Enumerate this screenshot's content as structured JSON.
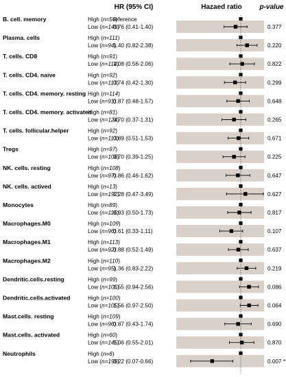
{
  "headers": {
    "hr_ci": "HR (95% CI)",
    "plot": "Hazaed ratio",
    "pvalue": "p-value"
  },
  "chart_data": {
    "type": "forest",
    "x_reference": 1,
    "reference_label": "reference",
    "colors": {
      "band": "#d9d0c9",
      "point": "#000000",
      "reference_line": "#555555"
    },
    "rows": [
      {
        "name": "B. cell. memory",
        "high_n": "n=56",
        "low_n": "n=149",
        "hr": 0.76,
        "lo": 0.41,
        "hi": 1.4,
        "hr_text": "0.76 (0.41-1.40)",
        "p": "0.377"
      },
      {
        "name": "Plasma. cells",
        "high_n": "n=111",
        "low_n": "n=94",
        "hr": 1.4,
        "lo": 0.82,
        "hi": 2.38,
        "hr_text": "1.40 (0.82-2.38)",
        "p": "0.220"
      },
      {
        "name": "T. cells. CD8",
        "high_n": "n=91",
        "low_n": "n=114",
        "hr": 1.08,
        "lo": 0.56,
        "hi": 2.06,
        "hr_text": "1.08 (0.56-2.06)",
        "p": "0.822"
      },
      {
        "name": "T. cells. CD4. naive",
        "high_n": "n=92",
        "low_n": "n=113",
        "hr": 0.74,
        "lo": 0.42,
        "hi": 1.3,
        "hr_text": "0.74 (0.42-1.30)",
        "p": "0.299"
      },
      {
        "name": "T. cells. CD4. memory. resting",
        "high_n": "n=114",
        "low_n": "n=91",
        "hr": 0.87,
        "lo": 0.48,
        "hi": 1.57,
        "hr_text": "0.87 (0.48-1.57)",
        "p": "0.648"
      },
      {
        "name": "T. cells. CD4. memory. activated",
        "high_n": "n=81",
        "low_n": "n=124",
        "hr": 0.7,
        "lo": 0.37,
        "hi": 1.31,
        "hr_text": "0.70 (0.37-1.31)",
        "p": "0.265"
      },
      {
        "name": "T. cells. follicular.helper",
        "high_n": "n=92",
        "low_n": "n=113",
        "hr": 0.89,
        "lo": 0.51,
        "hi": 1.53,
        "hr_text": "0.89 (0.51-1.53)",
        "p": "0.671"
      },
      {
        "name": "Tregs",
        "high_n": "n=97",
        "low_n": "n=108",
        "hr": 0.7,
        "lo": 0.39,
        "hi": 1.25,
        "hr_text": "0.70 (0.39-1.25)",
        "p": "0.225"
      },
      {
        "name": "NK. cells. resting",
        "high_n": "n=108",
        "low_n": "n=97",
        "hr": 0.86,
        "lo": 0.46,
        "hi": 1.62,
        "hr_text": "0.86 (0.46-1.62)",
        "p": "0.647"
      },
      {
        "name": "NK. cells. actived",
        "high_n": "n=13",
        "low_n": "n=192",
        "hr": 1.28,
        "lo": 0.47,
        "hi": 3.49,
        "hr_text": "1.28 (0.47-3.49)",
        "p": "0.627"
      },
      {
        "name": "Monocytes",
        "high_n": "n=89",
        "low_n": "n=116",
        "hr": 0.93,
        "lo": 0.5,
        "hi": 1.73,
        "hr_text": "0.93 (0.50-1.73)",
        "p": "0.817"
      },
      {
        "name": "Macrophages.M0",
        "high_n": "n=109",
        "low_n": "n=96",
        "hr": 0.61,
        "lo": 0.33,
        "hi": 1.11,
        "hr_text": "0.61 (0.33-1.11)",
        "p": "0.107"
      },
      {
        "name": "Macrophages.M1",
        "high_n": "n=113",
        "low_n": "n=92",
        "hr": 0.88,
        "lo": 0.52,
        "hi": 1.49,
        "hr_text": "0.88 (0.52-1.49)",
        "p": "0.637"
      },
      {
        "name": "Macrophages.M2",
        "high_n": "n=110",
        "low_n": "n=95",
        "hr": 1.36,
        "lo": 0.83,
        "hi": 2.22,
        "hr_text": "1.36 (0.83-2.22)",
        "p": "0.219"
      },
      {
        "name": "Dendritic.cells.resting",
        "high_n": "n=99",
        "low_n": "n=106",
        "hr": 1.55,
        "lo": 0.94,
        "hi": 2.56,
        "hr_text": "1.55 (0.94-2.56)",
        "p": "0.086"
      },
      {
        "name": "Dendritic.cells.activated",
        "high_n": "n=100",
        "low_n": "n=105",
        "hr": 1.56,
        "lo": 0.97,
        "hi": 2.5,
        "hr_text": "1.56 (0.97-2.50)",
        "p": "0.064"
      },
      {
        "name": "Mast.cells. resting",
        "high_n": "n=109",
        "low_n": "n=96",
        "hr": 0.87,
        "lo": 0.43,
        "hi": 1.74,
        "hr_text": "0.87 (0.43-1.74)",
        "p": "0.690"
      },
      {
        "name": "Mast.cells. activated",
        "high_n": "n=60",
        "low_n": "n=145",
        "hr": 1.06,
        "lo": 0.55,
        "hi": 2.01,
        "hr_text": "1.06 (0.55-2.01)",
        "p": "0.870"
      },
      {
        "name": "Neutrophils",
        "high_n": "n=6",
        "low_n": "n=199",
        "hr": 0.22,
        "lo": 0.07,
        "hi": 0.66,
        "hr_text": "0.22 (0.07-0.66)",
        "p": "0.007 *"
      }
    ]
  }
}
